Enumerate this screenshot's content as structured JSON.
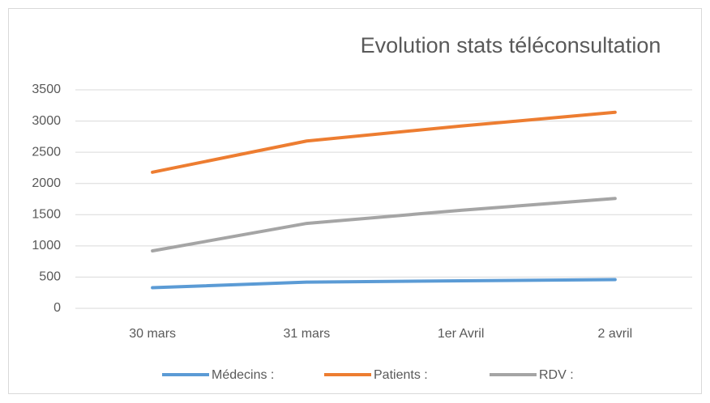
{
  "chart_data": {
    "type": "line",
    "title": "Evolution stats téléconsultation",
    "categories": [
      "30 mars",
      "31 mars",
      "1er Avril",
      "2 avril"
    ],
    "series": [
      {
        "name": "Médecins :",
        "color": "#5b9bd5",
        "values": [
          330,
          420,
          440,
          460
        ]
      },
      {
        "name": "Patients :",
        "color": "#ed7d31",
        "values": [
          2180,
          2680,
          2920,
          3140
        ]
      },
      {
        "name": "RDV :",
        "color": "#a5a5a5",
        "values": [
          920,
          1360,
          1570,
          1760
        ]
      }
    ],
    "ylim": [
      0,
      3500
    ],
    "yticks": [
      0,
      500,
      1000,
      1500,
      2000,
      2500,
      3000,
      3500
    ],
    "grid": true,
    "legend": "bottom"
  }
}
